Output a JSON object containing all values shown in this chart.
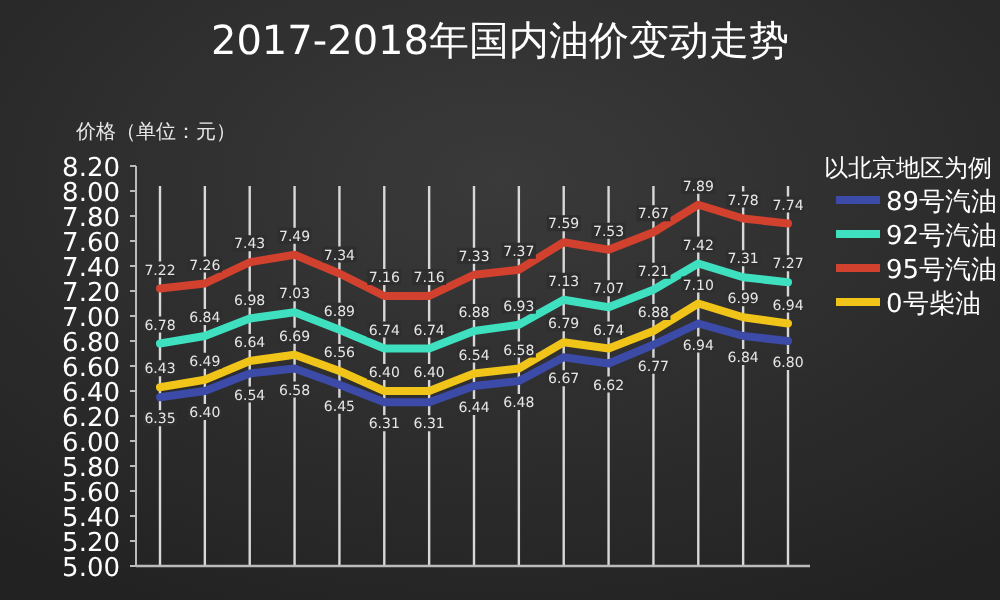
{
  "chart_data": {
    "type": "line",
    "title": "2017-2018年国内油价变动走势",
    "ylabel": "价格（单位：元）",
    "legend_title": "以北京地区为例",
    "categories": [
      null,
      null,
      null,
      null,
      null,
      null,
      null,
      null,
      null,
      null,
      null,
      null,
      null,
      null,
      null
    ],
    "series": [
      {
        "name": "89号汽油",
        "color": "#3c4aa8",
        "values": [
          6.35,
          6.4,
          6.54,
          6.58,
          6.45,
          6.31,
          6.31,
          6.44,
          6.48,
          6.67,
          6.62,
          6.77,
          6.94,
          6.84,
          6.8
        ],
        "value_labels": [
          "6.35",
          "6.40",
          "6.54",
          "6.58",
          "6.45",
          "6.31",
          "6.31",
          "6.44",
          "6.48",
          "6.67",
          "6.62",
          "6.77",
          "6.94",
          "6.84",
          "6.80"
        ]
      },
      {
        "name": "92号汽油",
        "color": "#3fe0c0",
        "values": [
          6.78,
          6.84,
          6.98,
          7.03,
          6.89,
          6.74,
          6.74,
          6.88,
          6.93,
          7.13,
          7.07,
          7.21,
          7.42,
          7.31,
          7.27
        ],
        "value_labels": [
          "6.78",
          "6.84",
          "6.98",
          "7.03",
          "6.89",
          "6.74",
          "6.74",
          "6.88",
          "6.93",
          "7.13",
          "7.07",
          "7.21",
          "7.42",
          "7.31",
          "7.27"
        ]
      },
      {
        "name": "95号汽油",
        "color": "#d2402e",
        "values": [
          7.22,
          7.26,
          7.43,
          7.49,
          7.34,
          7.16,
          7.16,
          7.33,
          7.37,
          7.59,
          7.53,
          7.67,
          7.89,
          7.78,
          7.74
        ],
        "value_labels": [
          "7.22",
          "7.26",
          "7.43",
          "7.49",
          "7.34",
          "7.16",
          "7.16",
          "7.33",
          "7.37",
          "7.59",
          "7.53",
          "7.67",
          "7.89",
          "7.78",
          "7.74"
        ]
      },
      {
        "name": "0号柴油",
        "color": "#f0c419",
        "values": [
          6.43,
          6.49,
          6.64,
          6.69,
          6.56,
          6.4,
          6.4,
          6.54,
          6.58,
          6.79,
          6.74,
          6.88,
          7.1,
          6.99,
          6.94
        ],
        "value_labels": [
          "6.43",
          "6.49",
          "6.64",
          "6.69",
          "6.56",
          "6.40",
          "6.40",
          "6.54",
          "6.58",
          "6.79",
          "6.74",
          "6.88",
          "7.10",
          "6.99",
          "6.94"
        ]
      }
    ],
    "ylim": [
      5.0,
      8.2
    ],
    "yticks": [
      {
        "value": 5.0,
        "label": "5.00"
      },
      {
        "value": 5.2,
        "label": "5.20"
      },
      {
        "value": 5.4,
        "label": "5.40"
      },
      {
        "value": 5.6,
        "label": "5.60"
      },
      {
        "value": 5.8,
        "label": "5.80"
      },
      {
        "value": 6.0,
        "label": "6.00"
      },
      {
        "value": 6.2,
        "label": "6.20"
      },
      {
        "value": 6.4,
        "label": "6.40"
      },
      {
        "value": 6.6,
        "label": "6.60"
      },
      {
        "value": 6.8,
        "label": "6.80"
      },
      {
        "value": 7.0,
        "label": "7.00"
      },
      {
        "value": 7.2,
        "label": "7.20"
      },
      {
        "value": 7.4,
        "label": "7.40"
      },
      {
        "value": 7.6,
        "label": "7.60"
      },
      {
        "value": 7.8,
        "label": "7.80"
      },
      {
        "value": 8.0,
        "label": "8.00"
      },
      {
        "value": 8.2,
        "label": "8.20"
      }
    ],
    "grid": "x",
    "legend": "right",
    "marker": "none",
    "line_style": "solid"
  }
}
